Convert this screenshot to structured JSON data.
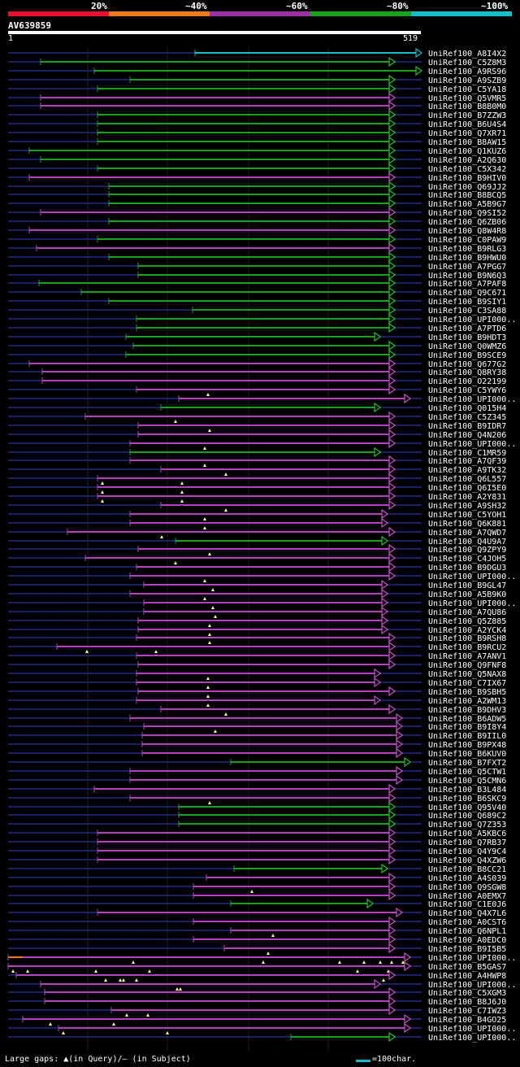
{
  "legend": [
    {
      "label": "20%",
      "color": "#e8102e"
    },
    {
      "label": "~40%",
      "color": "#ef7a1a"
    },
    {
      "label": "~60%",
      "color": "#9b2fa6"
    },
    {
      "label": "~80%",
      "color": "#19a31c"
    },
    {
      "label": "~100%",
      "color": "#17bdc9"
    }
  ],
  "query": {
    "name": "AV639859",
    "start": "1",
    "end": "519"
  },
  "colors": {
    "cyan": "#17bdc9",
    "green": "#19a31c",
    "purple": "#b63fbf",
    "orange": "#ef7a1a",
    "arrow_green": "#22c42a",
    "arrow_purple": "#c94fd2",
    "navy": "#1a2266",
    "gap": "#ffff88"
  },
  "hits": [
    {
      "label": "UniRef100_A8I4X2",
      "c": "c",
      "s": 240,
      "e": 519,
      "ar": 1
    },
    {
      "label": "UniRef100_C5Z8M3",
      "c": "g",
      "s": 50,
      "e": 486
    },
    {
      "label": "UniRef100_A9RS96",
      "c": "g",
      "s": 116,
      "e": 519,
      "ar": 1
    },
    {
      "label": "UniRef100_A9SZB9",
      "c": "g",
      "s": 160,
      "e": 486
    },
    {
      "label": "UniRef100_C5YA18",
      "c": "g",
      "s": 120,
      "e": 486
    },
    {
      "label": "UniRef100_Q5VMR5",
      "c": "p",
      "s": 50,
      "e": 486
    },
    {
      "label": "UniRef100_B8B0M0",
      "c": "p",
      "s": 50,
      "e": 486
    },
    {
      "label": "UniRef100_B7ZZW3",
      "c": "g",
      "s": 120,
      "e": 486
    },
    {
      "label": "UniRef100_B6U4S4",
      "c": "g",
      "s": 120,
      "e": 486
    },
    {
      "label": "UniRef100_Q7XR71",
      "c": "g",
      "s": 120,
      "e": 486
    },
    {
      "label": "UniRef100_B8AW15",
      "c": "g",
      "s": 120,
      "e": 486
    },
    {
      "label": "UniRef100_Q1KUZ6",
      "c": "g",
      "s": 36,
      "e": 486
    },
    {
      "label": "UniRef100_A2Q630",
      "c": "g",
      "s": 50,
      "e": 486
    },
    {
      "label": "UniRef100_C5X342",
      "c": "g",
      "s": 120,
      "e": 486
    },
    {
      "label": "UniRef100_B9HIV0",
      "c": "p",
      "s": 36,
      "e": 486
    },
    {
      "label": "UniRef100_Q69JJ2",
      "c": "g",
      "s": 134,
      "e": 486
    },
    {
      "label": "UniRef100_B8BCQ5",
      "c": "g",
      "s": 134,
      "e": 486
    },
    {
      "label": "UniRef100_A5B9G7",
      "c": "g",
      "s": 134,
      "e": 486
    },
    {
      "label": "UniRef100_Q9SI52",
      "c": "p",
      "s": 50,
      "e": 486
    },
    {
      "label": "UniRef100_Q6ZB06",
      "c": "g",
      "s": 134,
      "e": 486
    },
    {
      "label": "UniRef100_Q8W4R8",
      "c": "p",
      "s": 36,
      "e": 486
    },
    {
      "label": "UniRef100_C0PAW9",
      "c": "g",
      "s": 120,
      "e": 486
    },
    {
      "label": "UniRef100_B9RLG3",
      "c": "p",
      "s": 45,
      "e": 486
    },
    {
      "label": "UniRef100_B9HWU0",
      "c": "g",
      "s": 134,
      "e": 486
    },
    {
      "label": "UniRef100_A7PGG7",
      "c": "g",
      "s": 170,
      "e": 486
    },
    {
      "label": "UniRef100_B9N6Q3",
      "c": "g",
      "s": 170,
      "e": 486
    },
    {
      "label": "UniRef100_A7PAF8",
      "c": "g",
      "s": 48,
      "e": 486
    },
    {
      "label": "UniRef100_Q9C671",
      "c": "g",
      "s": 100,
      "e": 486
    },
    {
      "label": "UniRef100_B9SIY1",
      "c": "g",
      "s": 134,
      "e": 486
    },
    {
      "label": "UniRef100_C3SA88",
      "c": "g",
      "s": 237,
      "e": 486
    },
    {
      "label": "UniRef100_UPI000..",
      "c": "g",
      "s": 168,
      "e": 486
    },
    {
      "label": "UniRef100_A7PTD6",
      "c": "g",
      "s": 168,
      "e": 486
    },
    {
      "label": "UniRef100_B9HDT3",
      "c": "g",
      "s": 155,
      "e": 468
    },
    {
      "label": "UniRef100_Q0WMZ6",
      "c": "g",
      "s": 164,
      "e": 486
    },
    {
      "label": "UniRef100_B9SCE9",
      "c": "g",
      "s": 155,
      "e": 486
    },
    {
      "label": "UniRef100_Q677G2",
      "c": "p",
      "s": 36,
      "e": 486
    },
    {
      "label": "UniRef100_Q8RY38",
      "c": "p",
      "s": 52,
      "e": 486
    },
    {
      "label": "UniRef100_O22199",
      "c": "p",
      "s": 52,
      "e": 486
    },
    {
      "label": "UniRef100_C5YWY6",
      "c": "p",
      "s": 168,
      "e": 486,
      "gp": [
        256
      ]
    },
    {
      "label": "UniRef100_UPI000..",
      "c": "p",
      "s": 220,
      "e": 505
    },
    {
      "label": "UniRef100_Q015H4",
      "c": "g",
      "s": 198,
      "e": 468
    },
    {
      "label": "UniRef100_C5Z345",
      "c": "p",
      "s": 105,
      "e": 486,
      "gp": [
        216
      ]
    },
    {
      "label": "UniRef100_B9IDR7",
      "c": "p",
      "s": 170,
      "e": 486,
      "gp": [
        258
      ]
    },
    {
      "label": "UniRef100_Q4N206",
      "c": "p",
      "s": 170,
      "e": 486
    },
    {
      "label": "UniRef100_UPI000..",
      "c": "p",
      "s": 160,
      "e": 486,
      "gp": [
        252
      ]
    },
    {
      "label": "UniRef100_C1MR59",
      "c": "g",
      "s": 160,
      "e": 468
    },
    {
      "label": "UniRef100_A7QF39",
      "c": "p",
      "s": 160,
      "e": 486,
      "gp": [
        252
      ]
    },
    {
      "label": "UniRef100_A9TK32",
      "c": "p",
      "s": 198,
      "e": 486,
      "gp": [
        278
      ]
    },
    {
      "label": "UniRef100_Q6L557",
      "c": "p",
      "s": 120,
      "e": 486,
      "gp": [
        126,
        224
      ]
    },
    {
      "label": "UniRef100_Q6I5E0",
      "c": "p",
      "s": 120,
      "e": 486,
      "gp": [
        126,
        224
      ]
    },
    {
      "label": "UniRef100_A2Y831",
      "c": "p",
      "s": 120,
      "e": 486,
      "gp": [
        126,
        224
      ]
    },
    {
      "label": "UniRef100_A9SH32",
      "c": "p",
      "s": 198,
      "e": 486,
      "gp": [
        278
      ]
    },
    {
      "label": "UniRef100_C5YOH1",
      "c": "p",
      "s": 160,
      "e": 477,
      "gp": [
        252
      ]
    },
    {
      "label": "UniRef100_Q6K881",
      "c": "p",
      "s": 160,
      "e": 477,
      "gp": [
        252
      ]
    },
    {
      "label": "UniRef100_A7QWD7",
      "c": "p",
      "s": 83,
      "e": 486,
      "gp": [
        199
      ]
    },
    {
      "label": "UniRef100_Q4U9A7",
      "c": "g",
      "s": 216,
      "e": 477
    },
    {
      "label": "UniRef100_Q9ZPY9",
      "c": "p",
      "s": 170,
      "e": 486,
      "gp": [
        258
      ]
    },
    {
      "label": "UniRef100_C4JOH5",
      "c": "p",
      "s": 105,
      "e": 486,
      "gp": [
        216
      ]
    },
    {
      "label": "UniRef100_B9DGU3",
      "c": "p",
      "s": 168,
      "e": 486
    },
    {
      "label": "UniRef100_UPI000..",
      "c": "p",
      "s": 160,
      "e": 486,
      "gp": [
        252
      ]
    },
    {
      "label": "UniRef100_B9GL47",
      "c": "p",
      "s": 177,
      "e": 477,
      "gp": [
        262
      ]
    },
    {
      "label": "UniRef100_A5B9K0",
      "c": "p",
      "s": 160,
      "e": 477,
      "gp": [
        252
      ]
    },
    {
      "label": "UniRef100_UPI000..",
      "c": "p",
      "s": 177,
      "e": 477,
      "gp": [
        262
      ]
    },
    {
      "label": "UniRef100_A7QU86",
      "c": "p",
      "s": 177,
      "e": 477,
      "gp": [
        265
      ]
    },
    {
      "label": "UniRef100_Q5Z885",
      "c": "p",
      "s": 170,
      "e": 477,
      "gp": [
        258
      ]
    },
    {
      "label": "UniRef100_A2YCK4",
      "c": "p",
      "s": 170,
      "e": 477,
      "gp": [
        258
      ]
    },
    {
      "label": "UniRef100_B9RSH8",
      "c": "p",
      "s": 168,
      "e": 486,
      "gp": [
        258
      ]
    },
    {
      "label": "UniRef100_B9RCU2",
      "c": "p",
      "s": 70,
      "e": 486,
      "gp": [
        107,
        192
      ]
    },
    {
      "label": "UniRef100_A7ANV1",
      "c": "p",
      "s": 168,
      "e": 486
    },
    {
      "label": "UniRef100_Q9FNF8",
      "c": "p",
      "s": 170,
      "e": 486
    },
    {
      "label": "UniRef100_Q5NAX8",
      "c": "p",
      "s": 168,
      "e": 468,
      "gp": [
        256
      ]
    },
    {
      "label": "UniRef100_C7IX67",
      "c": "p",
      "s": 168,
      "e": 468,
      "gp": [
        256
      ]
    },
    {
      "label": "UniRef100_B9SBH5",
      "c": "p",
      "s": 170,
      "e": 486,
      "gp": [
        256
      ]
    },
    {
      "label": "UniRef100_A2WM13",
      "c": "p",
      "s": 168,
      "e": 468,
      "gp": [
        256
      ]
    },
    {
      "label": "UniRef100_B9DHV3",
      "c": "p",
      "s": 198,
      "e": 486,
      "gp": [
        278
      ]
    },
    {
      "label": "UniRef100_B6ADW5",
      "c": "p",
      "s": 160,
      "e": 495
    },
    {
      "label": "UniRef100_B9I8Y4",
      "c": "p",
      "s": 177,
      "e": 495,
      "gp": [
        265
      ]
    },
    {
      "label": "UniRef100_B9IIL0",
      "c": "p",
      "s": 175,
      "e": 495
    },
    {
      "label": "UniRef100_B9PX48",
      "c": "p",
      "s": 175,
      "e": 495
    },
    {
      "label": "UniRef100_B6KUV0",
      "c": "p",
      "s": 175,
      "e": 495
    },
    {
      "label": "UniRef100_B7FXT2",
      "c": "g",
      "s": 284,
      "e": 505
    },
    {
      "label": "UniRef100_Q5CTW1",
      "c": "p",
      "s": 160,
      "e": 495
    },
    {
      "label": "UniRef100_Q5CMN6",
      "c": "p",
      "s": 160,
      "e": 495
    },
    {
      "label": "UniRef100_B3L484",
      "c": "p",
      "s": 116,
      "e": 486
    },
    {
      "label": "UniRef100_B6SKC9",
      "c": "p",
      "s": 160,
      "e": 486,
      "gp": [
        258
      ]
    },
    {
      "label": "UniRef100_Q95V40",
      "c": "g",
      "s": 220,
      "e": 486
    },
    {
      "label": "UniRef100_Q689C2",
      "c": "g",
      "s": 220,
      "e": 486
    },
    {
      "label": "UniRef100_Q7Z353",
      "c": "g",
      "s": 220,
      "e": 486
    },
    {
      "label": "UniRef100_A5KBC6",
      "c": "p",
      "s": 120,
      "e": 486
    },
    {
      "label": "UniRef100_Q7RB37",
      "c": "p",
      "s": 120,
      "e": 486
    },
    {
      "label": "UniRef100_Q4Y9C4",
      "c": "p",
      "s": 120,
      "e": 486
    },
    {
      "label": "UniRef100_Q4XZW6",
      "c": "p",
      "s": 120,
      "e": 486
    },
    {
      "label": "UniRef100_B8CC21",
      "c": "g",
      "s": 288,
      "e": 477
    },
    {
      "label": "UniRef100_A4S039",
      "c": "p",
      "s": 254,
      "e": 486
    },
    {
      "label": "UniRef100_Q9SGW8",
      "c": "p",
      "s": 238,
      "e": 486,
      "gp": [
        310
      ]
    },
    {
      "label": "UniRef100_A0EMX7",
      "c": "p",
      "s": 238,
      "e": 486
    },
    {
      "label": "UniRef100_C1E0J6",
      "c": "g",
      "s": 284,
      "e": 459
    },
    {
      "label": "UniRef100_Q4X7L6",
      "c": "p",
      "s": 120,
      "e": 495
    },
    {
      "label": "UniRef100_A0CST6",
      "c": "p",
      "s": 238,
      "e": 486
    },
    {
      "label": "UniRef100_Q6NPL1",
      "c": "p",
      "s": 284,
      "e": 486,
      "gp": [
        336
      ]
    },
    {
      "label": "UniRef100_A0EDC0",
      "c": "p",
      "s": 238,
      "e": 486
    },
    {
      "label": "UniRef100_B9I5B5",
      "c": "p",
      "s": 276,
      "e": 486,
      "gp": [
        330
      ]
    },
    {
      "label": "UniRef100_UPI000..",
      "c": "p",
      "s": 10,
      "e": 505,
      "or": [
        10,
        28
      ],
      "gp": [
        164,
        324,
        418,
        448,
        468,
        482,
        496
      ]
    },
    {
      "label": "UniRef100_B5GAS7",
      "c": "p",
      "s": 10,
      "e": 505,
      "gp": [
        16,
        34,
        118,
        184,
        440,
        478
      ]
    },
    {
      "label": "UniRef100_A4HWP8",
      "c": "p",
      "s": 20,
      "e": 486,
      "gp": [
        130,
        148,
        152,
        168,
        472
      ]
    },
    {
      "label": "UniRef100_UPI000..",
      "c": "p",
      "s": 50,
      "e": 468,
      "gp": [
        218,
        222
      ]
    },
    {
      "label": "UniRef100_C5XGM3",
      "c": "p",
      "s": 55,
      "e": 486
    },
    {
      "label": "UniRef100_B8J6J0",
      "c": "p",
      "s": 55,
      "e": 486
    },
    {
      "label": "UniRef100_C7IWZ3",
      "c": "p",
      "s": 137,
      "e": 486,
      "gp": [
        156,
        182
      ]
    },
    {
      "label": "UniRef100_B4GO25",
      "c": "p",
      "s": 28,
      "e": 505,
      "gp": [
        62,
        140
      ]
    },
    {
      "label": "UniRef100_UPI000..",
      "c": "p",
      "s": 72,
      "e": 505,
      "gp": [
        78,
        206
      ]
    },
    {
      "label": "UniRef100_UPI000..",
      "c": "g",
      "s": 358,
      "e": 486
    }
  ],
  "footer": {
    "text": "Large gaps: ▲(in Query)/– (in Subject)"
  },
  "scale": {
    "label": "=100char."
  }
}
